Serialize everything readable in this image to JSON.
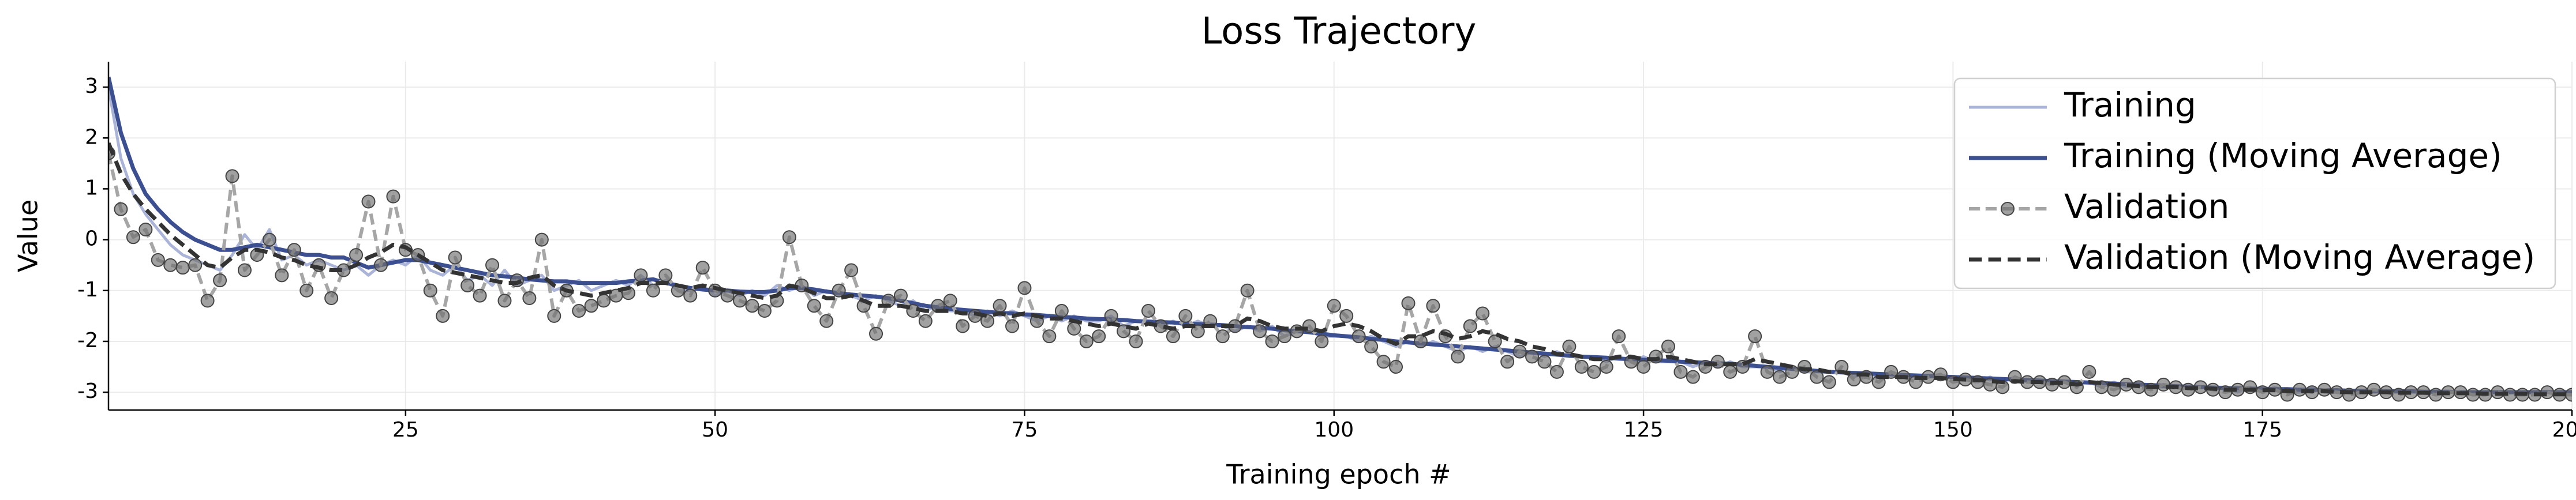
{
  "chart_data": {
    "type": "line",
    "title": "Loss Trajectory",
    "x_label": "Training epoch #",
    "y_label": "Value",
    "grid": true,
    "legend": "upper right",
    "xlim": [
      1,
      200
    ],
    "ylim": [
      -3.35,
      3.5
    ],
    "xticks": [
      25,
      50,
      75,
      100,
      125,
      150,
      175,
      200
    ],
    "yticks": [
      -3,
      -2,
      -1,
      0,
      1,
      2,
      3
    ],
    "x": [
      1,
      2,
      3,
      4,
      5,
      6,
      7,
      8,
      9,
      10,
      11,
      12,
      13,
      14,
      15,
      16,
      17,
      18,
      19,
      20,
      21,
      22,
      23,
      24,
      25,
      26,
      27,
      28,
      29,
      30,
      31,
      32,
      33,
      34,
      35,
      36,
      37,
      38,
      39,
      40,
      41,
      42,
      43,
      44,
      45,
      46,
      47,
      48,
      49,
      50,
      51,
      52,
      53,
      54,
      55,
      56,
      57,
      58,
      59,
      60,
      61,
      62,
      63,
      64,
      65,
      66,
      67,
      68,
      69,
      70,
      71,
      72,
      73,
      74,
      75,
      76,
      77,
      78,
      79,
      80,
      81,
      82,
      83,
      84,
      85,
      86,
      87,
      88,
      89,
      90,
      91,
      92,
      93,
      94,
      95,
      96,
      97,
      98,
      99,
      100,
      101,
      102,
      103,
      104,
      105,
      106,
      107,
      108,
      109,
      110,
      111,
      112,
      113,
      114,
      115,
      116,
      117,
      118,
      119,
      120,
      121,
      122,
      123,
      124,
      125,
      126,
      127,
      128,
      129,
      130,
      131,
      132,
      133,
      134,
      135,
      136,
      137,
      138,
      139,
      140,
      141,
      142,
      143,
      144,
      145,
      146,
      147,
      148,
      149,
      150,
      151,
      152,
      153,
      154,
      155,
      156,
      157,
      158,
      159,
      160,
      161,
      162,
      163,
      164,
      165,
      166,
      167,
      168,
      169,
      170,
      171,
      172,
      173,
      174,
      175,
      176,
      177,
      178,
      179,
      180,
      181,
      182,
      183,
      184,
      185,
      186,
      187,
      188,
      189,
      190,
      191,
      192,
      193,
      194,
      195,
      196,
      197,
      198,
      199,
      200
    ],
    "series": [
      {
        "name": "Training",
        "color": "#aab4d8",
        "linestyle": "solid",
        "width": 5,
        "values": [
          3.0,
          1.6,
          0.9,
          0.5,
          0.2,
          -0.1,
          -0.3,
          -0.4,
          -0.5,
          -0.6,
          -0.3,
          0.1,
          -0.2,
          0.2,
          -0.4,
          -0.3,
          -0.5,
          -0.4,
          -0.5,
          -0.6,
          -0.5,
          -0.7,
          -0.5,
          -0.4,
          -0.5,
          -0.3,
          -0.6,
          -0.7,
          -0.5,
          -0.8,
          -0.7,
          -0.9,
          -0.6,
          -0.9,
          -0.8,
          -0.7,
          -1.0,
          -0.9,
          -0.8,
          -1.0,
          -0.9,
          -0.8,
          -0.9,
          -0.7,
          -0.9,
          -0.8,
          -1.0,
          -1.0,
          -0.9,
          -1.1,
          -1.0,
          -1.1,
          -1.0,
          -1.1,
          -0.9,
          -1.0,
          -0.9,
          -1.1,
          -1.0,
          -1.1,
          -1.1,
          -1.2,
          -1.1,
          -1.2,
          -1.3,
          -1.2,
          -1.4,
          -1.3,
          -1.4,
          -1.4,
          -1.5,
          -1.4,
          -1.5,
          -1.4,
          -1.5,
          -1.6,
          -1.5,
          -1.6,
          -1.5,
          -1.6,
          -1.6,
          -1.5,
          -1.7,
          -1.6,
          -1.6,
          -1.7,
          -1.6,
          -1.7,
          -1.6,
          -1.7,
          -1.7,
          -1.8,
          -1.7,
          -1.8,
          -1.7,
          -1.9,
          -1.8,
          -1.8,
          -1.9,
          -1.9,
          -1.9,
          -2.0,
          -1.9,
          -2.0,
          -2.1,
          -2.0,
          -2.1,
          -2.0,
          -2.1,
          -2.2,
          -2.1,
          -2.2,
          -2.1,
          -2.2,
          -2.3,
          -2.2,
          -2.3,
          -2.2,
          -2.3,
          -2.3,
          -2.3,
          -2.4,
          -2.3,
          -2.4,
          -2.3,
          -2.4,
          -2.4,
          -2.4,
          -2.5,
          -2.4,
          -2.5,
          -2.4,
          -2.5,
          -2.5,
          -2.5,
          -2.6,
          -2.5,
          -2.6,
          -2.6,
          -2.6,
          -2.6,
          -2.7,
          -2.6,
          -2.7,
          -2.6,
          -2.7,
          -2.7,
          -2.7,
          -2.7,
          -2.7,
          -2.7,
          -2.8,
          -2.7,
          -2.8,
          -2.7,
          -2.8,
          -2.8,
          -2.8,
          -2.8,
          -2.8,
          -2.8,
          -2.9,
          -2.8,
          -2.9,
          -2.8,
          -2.9,
          -2.9,
          -2.9,
          -2.9,
          -2.9,
          -2.9,
          -2.9,
          -3.0,
          -2.9,
          -3.0,
          -2.9,
          -3.0,
          -3.0,
          -2.9,
          -3.0,
          -3.0,
          -3.0,
          -3.0,
          -3.0,
          -3.0,
          -3.0,
          -3.0,
          -3.0,
          -3.0,
          -3.0,
          -3.0,
          -3.0,
          -3.0,
          -3.0,
          -3.0,
          -3.0,
          -3.0,
          -3.0,
          -3.0,
          -3.0
        ]
      },
      {
        "name": "Training (Moving Average)",
        "color": "#3b4f91",
        "linestyle": "solid",
        "width": 7,
        "values": [
          3.2,
          2.1,
          1.4,
          0.9,
          0.6,
          0.35,
          0.15,
          0.0,
          -0.1,
          -0.2,
          -0.2,
          -0.15,
          -0.1,
          -0.15,
          -0.2,
          -0.25,
          -0.3,
          -0.3,
          -0.35,
          -0.35,
          -0.45,
          -0.55,
          -0.5,
          -0.45,
          -0.4,
          -0.4,
          -0.45,
          -0.5,
          -0.55,
          -0.6,
          -0.65,
          -0.7,
          -0.72,
          -0.75,
          -0.78,
          -0.8,
          -0.82,
          -0.82,
          -0.85,
          -0.85,
          -0.85,
          -0.85,
          -0.82,
          -0.8,
          -0.78,
          -0.85,
          -0.9,
          -0.95,
          -0.98,
          -1.0,
          -1.0,
          -1.02,
          -1.03,
          -1.03,
          -1.0,
          -0.95,
          -0.95,
          -0.98,
          -1.02,
          -1.05,
          -1.08,
          -1.1,
          -1.12,
          -1.15,
          -1.2,
          -1.25,
          -1.3,
          -1.33,
          -1.36,
          -1.38,
          -1.4,
          -1.42,
          -1.44,
          -1.45,
          -1.47,
          -1.48,
          -1.5,
          -1.52,
          -1.53,
          -1.55,
          -1.56,
          -1.57,
          -1.58,
          -1.6,
          -1.61,
          -1.62,
          -1.63,
          -1.65,
          -1.66,
          -1.67,
          -1.68,
          -1.7,
          -1.72,
          -1.73,
          -1.75,
          -1.78,
          -1.8,
          -1.82,
          -1.85,
          -1.88,
          -1.9,
          -1.92,
          -1.95,
          -1.97,
          -2.0,
          -2.02,
          -2.04,
          -2.06,
          -2.08,
          -2.1,
          -2.12,
          -2.14,
          -2.16,
          -2.18,
          -2.2,
          -2.22,
          -2.24,
          -2.26,
          -2.28,
          -2.3,
          -2.31,
          -2.32,
          -2.34,
          -2.35,
          -2.36,
          -2.37,
          -2.38,
          -2.4,
          -2.41,
          -2.42,
          -2.43,
          -2.44,
          -2.46,
          -2.48,
          -2.5,
          -2.52,
          -2.54,
          -2.56,
          -2.58,
          -2.6,
          -2.61,
          -2.62,
          -2.63,
          -2.64,
          -2.65,
          -2.66,
          -2.67,
          -2.68,
          -2.69,
          -2.7,
          -2.71,
          -2.72,
          -2.73,
          -2.74,
          -2.75,
          -2.76,
          -2.77,
          -2.78,
          -2.79,
          -2.8,
          -2.81,
          -2.82,
          -2.83,
          -2.84,
          -2.85,
          -2.86,
          -2.87,
          -2.88,
          -2.89,
          -2.9,
          -2.91,
          -2.92,
          -2.92,
          -2.93,
          -2.93,
          -2.94,
          -2.94,
          -2.95,
          -2.95,
          -2.96,
          -2.96,
          -2.97,
          -2.97,
          -2.97,
          -2.98,
          -2.98,
          -2.98,
          -2.99,
          -2.99,
          -2.99,
          -3.0,
          -3.0,
          -3.0,
          -3.0,
          -3.0,
          -3.0,
          -3.0,
          -3.0,
          -3.0,
          -3.0
        ]
      },
      {
        "name": "Validation",
        "color": "#a6a6a6",
        "linestyle": "dashed",
        "marker": "circle",
        "marker_color": "#6e6e6e",
        "width": 6,
        "values": [
          1.7,
          0.6,
          0.05,
          0.2,
          -0.4,
          -0.5,
          -0.55,
          -0.5,
          -1.2,
          -0.8,
          1.25,
          -0.6,
          -0.3,
          0.0,
          -0.7,
          -0.2,
          -1.0,
          -0.5,
          -1.15,
          -0.6,
          -0.3,
          0.75,
          -0.5,
          0.85,
          -0.2,
          -0.3,
          -1.0,
          -1.5,
          -0.35,
          -0.9,
          -1.1,
          -0.5,
          -1.2,
          -0.8,
          -1.15,
          0.0,
          -1.5,
          -1.0,
          -1.4,
          -1.3,
          -1.2,
          -1.1,
          -1.05,
          -0.7,
          -1.0,
          -0.7,
          -1.0,
          -1.1,
          -0.55,
          -1.0,
          -1.1,
          -1.2,
          -1.3,
          -1.4,
          -1.2,
          0.05,
          -0.9,
          -1.3,
          -1.6,
          -1.0,
          -0.6,
          -1.3,
          -1.85,
          -1.2,
          -1.1,
          -1.4,
          -1.6,
          -1.3,
          -1.2,
          -1.7,
          -1.5,
          -1.6,
          -1.3,
          -1.7,
          -0.95,
          -1.6,
          -1.9,
          -1.4,
          -1.75,
          -2.0,
          -1.9,
          -1.5,
          -1.8,
          -2.0,
          -1.4,
          -1.7,
          -1.9,
          -1.5,
          -1.8,
          -1.6,
          -1.9,
          -1.7,
          -1.0,
          -1.8,
          -2.0,
          -1.9,
          -1.8,
          -1.7,
          -2.0,
          -1.3,
          -1.5,
          -1.9,
          -2.1,
          -2.4,
          -2.5,
          -1.25,
          -2.0,
          -1.3,
          -1.9,
          -2.3,
          -1.7,
          -1.45,
          -2.0,
          -2.4,
          -2.2,
          -2.3,
          -2.4,
          -2.6,
          -2.1,
          -2.5,
          -2.6,
          -2.5,
          -1.9,
          -2.4,
          -2.5,
          -2.3,
          -2.1,
          -2.6,
          -2.7,
          -2.5,
          -2.4,
          -2.6,
          -2.5,
          -1.9,
          -2.6,
          -2.7,
          -2.6,
          -2.5,
          -2.7,
          -2.8,
          -2.5,
          -2.75,
          -2.7,
          -2.8,
          -2.6,
          -2.7,
          -2.8,
          -2.7,
          -2.65,
          -2.8,
          -2.75,
          -2.8,
          -2.85,
          -2.9,
          -2.7,
          -2.8,
          -2.8,
          -2.85,
          -2.8,
          -2.9,
          -2.6,
          -2.9,
          -2.95,
          -2.85,
          -2.9,
          -2.95,
          -2.85,
          -2.9,
          -2.95,
          -2.9,
          -2.95,
          -3.0,
          -2.95,
          -2.9,
          -3.0,
          -2.95,
          -3.05,
          -2.95,
          -3.0,
          -2.95,
          -3.0,
          -3.05,
          -3.0,
          -2.95,
          -3.0,
          -3.05,
          -3.0,
          -3.0,
          -3.05,
          -3.0,
          -3.0,
          -3.05,
          -3.05,
          -3.0,
          -3.05,
          -3.05,
          -3.05,
          -3.0,
          -3.05,
          -3.05
        ]
      },
      {
        "name": "Validation (Moving Average)",
        "color": "#333333",
        "linestyle": "dashed",
        "width": 7,
        "values": [
          1.9,
          1.3,
          0.9,
          0.6,
          0.35,
          0.1,
          -0.1,
          -0.3,
          -0.5,
          -0.55,
          -0.35,
          -0.2,
          -0.2,
          -0.25,
          -0.35,
          -0.4,
          -0.5,
          -0.55,
          -0.6,
          -0.6,
          -0.5,
          -0.35,
          -0.25,
          -0.1,
          -0.15,
          -0.3,
          -0.45,
          -0.6,
          -0.65,
          -0.7,
          -0.75,
          -0.8,
          -0.85,
          -0.85,
          -0.75,
          -0.7,
          -0.9,
          -1.0,
          -1.05,
          -1.1,
          -1.05,
          -1.0,
          -0.95,
          -0.85,
          -0.85,
          -0.85,
          -0.9,
          -0.95,
          -0.9,
          -0.95,
          -1.0,
          -1.05,
          -1.1,
          -1.15,
          -1.1,
          -0.9,
          -0.95,
          -1.05,
          -1.15,
          -1.15,
          -1.1,
          -1.2,
          -1.3,
          -1.3,
          -1.3,
          -1.35,
          -1.4,
          -1.4,
          -1.4,
          -1.45,
          -1.45,
          -1.5,
          -1.45,
          -1.5,
          -1.45,
          -1.5,
          -1.55,
          -1.55,
          -1.6,
          -1.65,
          -1.7,
          -1.65,
          -1.7,
          -1.75,
          -1.65,
          -1.7,
          -1.75,
          -1.7,
          -1.7,
          -1.7,
          -1.7,
          -1.7,
          -1.55,
          -1.6,
          -1.7,
          -1.75,
          -1.75,
          -1.75,
          -1.8,
          -1.7,
          -1.65,
          -1.7,
          -1.8,
          -1.95,
          -2.05,
          -1.9,
          -1.9,
          -1.8,
          -1.85,
          -1.95,
          -1.9,
          -1.8,
          -1.85,
          -1.95,
          -2.0,
          -2.1,
          -2.15,
          -2.25,
          -2.25,
          -2.3,
          -2.35,
          -2.35,
          -2.3,
          -2.3,
          -2.35,
          -2.35,
          -2.3,
          -2.35,
          -2.4,
          -2.45,
          -2.45,
          -2.45,
          -2.45,
          -2.35,
          -2.4,
          -2.45,
          -2.5,
          -2.55,
          -2.55,
          -2.6,
          -2.6,
          -2.65,
          -2.65,
          -2.7,
          -2.7,
          -2.7,
          -2.72,
          -2.72,
          -2.72,
          -2.74,
          -2.75,
          -2.76,
          -2.78,
          -2.8,
          -2.78,
          -2.8,
          -2.8,
          -2.82,
          -2.82,
          -2.85,
          -2.8,
          -2.82,
          -2.85,
          -2.86,
          -2.88,
          -2.9,
          -2.9,
          -2.9,
          -2.92,
          -2.92,
          -2.93,
          -2.95,
          -2.95,
          -2.95,
          -2.96,
          -2.96,
          -2.98,
          -2.98,
          -2.98,
          -2.98,
          -2.99,
          -3.0,
          -3.0,
          -3.0,
          -3.0,
          -3.01,
          -3.01,
          -3.01,
          -3.02,
          -3.02,
          -3.02,
          -3.02,
          -3.03,
          -3.03,
          -3.03,
          -3.03,
          -3.04,
          -3.04,
          -3.04,
          -3.04
        ]
      }
    ]
  }
}
